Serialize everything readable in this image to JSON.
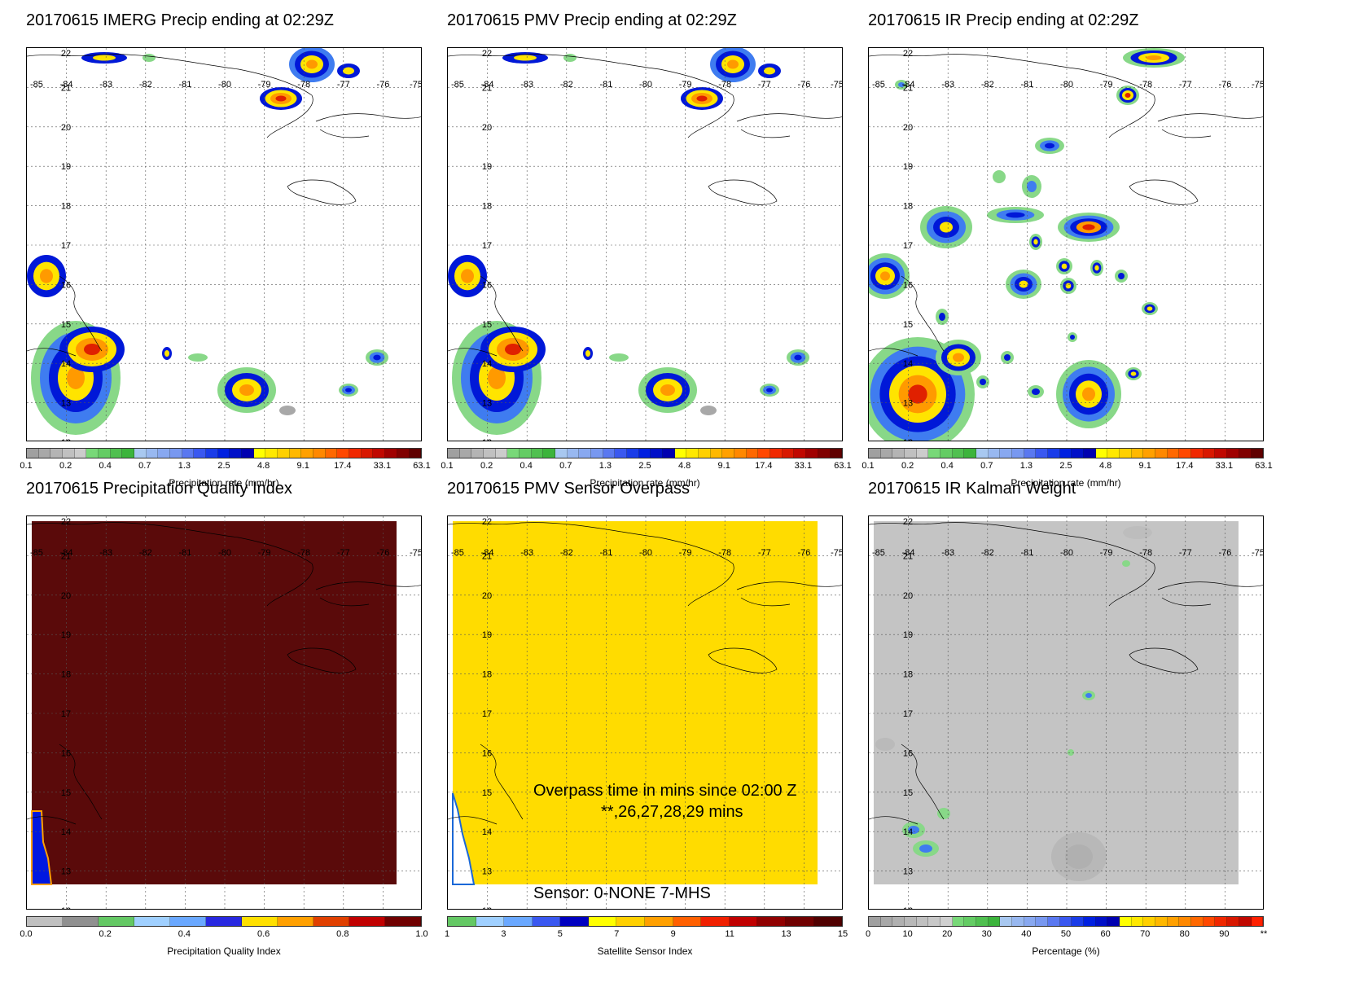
{
  "panels": [
    {
      "title": "20170615 IMERG Precip ending at 02:29Z",
      "field": "precip_imerg",
      "colorbar": "precip",
      "ticks": [
        "0.1",
        "0.2",
        "0.4",
        "0.7",
        "1.3",
        "2.5",
        "4.8",
        "9.1",
        "17.4",
        "33.1",
        "63.1"
      ],
      "label": "Precipitation rate (mm/hr)"
    },
    {
      "title": "20170615 PMV Precip ending at 02:29Z",
      "field": "precip_pmv",
      "colorbar": "precip",
      "ticks": [
        "0.1",
        "0.2",
        "0.4",
        "0.7",
        "1.3",
        "2.5",
        "4.8",
        "9.1",
        "17.4",
        "33.1",
        "63.1"
      ],
      "label": "Precipitation rate (mm/hr)"
    },
    {
      "title": "20170615 IR Precip ending at 02:29Z",
      "field": "precip_ir",
      "colorbar": "precip",
      "ticks": [
        "0.1",
        "0.2",
        "0.4",
        "0.7",
        "1.3",
        "2.5",
        "4.8",
        "9.1",
        "17.4",
        "33.1",
        "63.1"
      ],
      "label": "Precipitation rate (mm/hr)"
    },
    {
      "title": "20170615 Precipitation Quality Index",
      "field": "quality",
      "colorbar": "quality",
      "ticks": [
        "0.0",
        "0.2",
        "0.4",
        "0.6",
        "0.8",
        "1.0"
      ],
      "label": "Precipitation Quality Index"
    },
    {
      "title": "20170615 PMV Sensor Overpass",
      "field": "sensor",
      "colorbar": "sensor",
      "ticks": [
        "1",
        "3",
        "5",
        "7",
        "9",
        "11",
        "13",
        "15"
      ],
      "label": "Satellite Sensor Index"
    },
    {
      "title": "20170615 IR Kalman Weight",
      "field": "kalman",
      "colorbar": "kalman",
      "ticks": [
        "0",
        "10",
        "20",
        "30",
        "40",
        "50",
        "60",
        "70",
        "80",
        "90",
        "**"
      ],
      "label": "Percentage (%)"
    }
  ],
  "map": {
    "lon_labels": [
      "-85",
      "-84",
      "-83",
      "-82",
      "-81",
      "-80",
      "-79",
      "-78",
      "-77",
      "-76",
      "-75"
    ],
    "lat_labels": [
      "22",
      "21",
      "20",
      "19",
      "18",
      "17",
      "16",
      "15",
      "14",
      "13",
      "12"
    ]
  },
  "overpass_notes": {
    "line1": "Overpass time in mins since 02:00 Z",
    "line2": "**,26,27,28,29 mins",
    "line3": "Sensor:   0-NONE  7-MHS"
  },
  "colors": {
    "precip": [
      "#a0a0a0",
      "#a8a8a8",
      "#b4b4b4",
      "#c0c0c0",
      "#cccccc",
      "#78d878",
      "#64cc64",
      "#50c050",
      "#3cb43c",
      "#a8c8f0",
      "#98b8f0",
      "#88a8f0",
      "#7898f0",
      "#5a78f0",
      "#3a58f0",
      "#1a3ce8",
      "#0020e0",
      "#0010c8",
      "#0000b0",
      "#ffff00",
      "#ffe800",
      "#ffd000",
      "#ffb800",
      "#ffa000",
      "#ff8800",
      "#ff6800",
      "#ff4800",
      "#f02800",
      "#d81800",
      "#c00800",
      "#a00000",
      "#800000",
      "#600000"
    ],
    "quality": [
      "#c0c0c0",
      "#909090",
      "#64c864",
      "#a0d0ff",
      "#6aa8ff",
      "#2828e0",
      "#ffe000",
      "#ffa000",
      "#e04000",
      "#c00000",
      "#700000"
    ],
    "sensor": [
      "#64c864",
      "#a0d0ff",
      "#6aa8ff",
      "#3a58f0",
      "#0000c0",
      "#ffff00",
      "#ffd000",
      "#ffa000",
      "#ff6000",
      "#f02000",
      "#c00000",
      "#900000",
      "#700000",
      "#500000"
    ],
    "kalman": [
      "#a0a0a0",
      "#a8a8a8",
      "#b0b0b0",
      "#b8b8b8",
      "#c0c0c0",
      "#c8c8c8",
      "#d0d0d0",
      "#78d878",
      "#64cc64",
      "#50c050",
      "#3cb43c",
      "#a8c8f0",
      "#98b8f0",
      "#88a8f0",
      "#7898f0",
      "#5a78f0",
      "#3a58f0",
      "#1a3ce8",
      "#0020e0",
      "#0010c8",
      "#0000b0",
      "#ffff00",
      "#ffe800",
      "#ffd000",
      "#ffb800",
      "#ffa000",
      "#ff8800",
      "#ff6800",
      "#ff4800",
      "#f02800",
      "#d81800",
      "#c00800",
      "#ff2000"
    ]
  }
}
